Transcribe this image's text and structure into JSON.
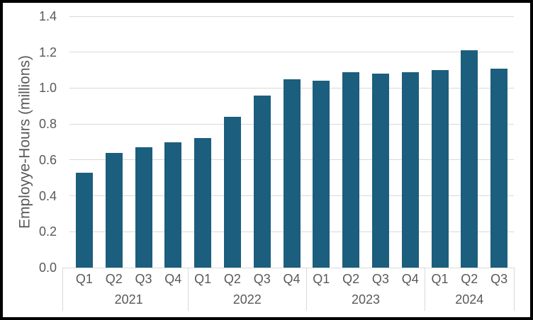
{
  "chart_data": {
    "type": "bar",
    "title": "",
    "xlabel": "",
    "ylabel": "Employye-Hours (millions)",
    "ylim": [
      0,
      1.4
    ],
    "ytick_interval": 0.2,
    "ytick_labels": [
      "0.0",
      "0.2",
      "0.4",
      "0.6",
      "0.8",
      "1.0",
      "1.2",
      "1.4"
    ],
    "grid": true,
    "legend_position": "none",
    "categories": [
      "2021 Q1",
      "2021 Q2",
      "2021 Q3",
      "2021 Q4",
      "2022 Q1",
      "2022 Q2",
      "2022 Q3",
      "2022 Q4",
      "2023 Q1",
      "2023 Q2",
      "2023 Q3",
      "2023 Q4",
      "2024 Q1",
      "2024 Q2",
      "2024 Q3"
    ],
    "values": [
      0.53,
      0.64,
      0.67,
      0.7,
      0.72,
      0.84,
      0.96,
      1.05,
      1.04,
      1.09,
      1.08,
      1.09,
      1.1,
      1.21,
      1.11
    ],
    "x_axis_groups": [
      {
        "year": "2021",
        "quarters": [
          "Q1",
          "Q2",
          "Q3",
          "Q4"
        ],
        "values": [
          0.53,
          0.64,
          0.67,
          0.7
        ]
      },
      {
        "year": "2022",
        "quarters": [
          "Q1",
          "Q2",
          "Q3",
          "Q4"
        ],
        "values": [
          0.72,
          0.84,
          0.96,
          1.05
        ]
      },
      {
        "year": "2023",
        "quarters": [
          "Q1",
          "Q2",
          "Q3",
          "Q4"
        ],
        "values": [
          1.04,
          1.09,
          1.08,
          1.09
        ]
      },
      {
        "year": "2024",
        "quarters": [
          "Q1",
          "Q2",
          "Q3"
        ],
        "values": [
          1.1,
          1.21,
          1.11
        ]
      }
    ],
    "colors": {
      "bar": "#1C5E7D",
      "gridline": "#D9D9D9",
      "axis_line": "#D9D9D9",
      "text": "#595959",
      "border": "#000000",
      "background": "#FFFFFF"
    }
  }
}
